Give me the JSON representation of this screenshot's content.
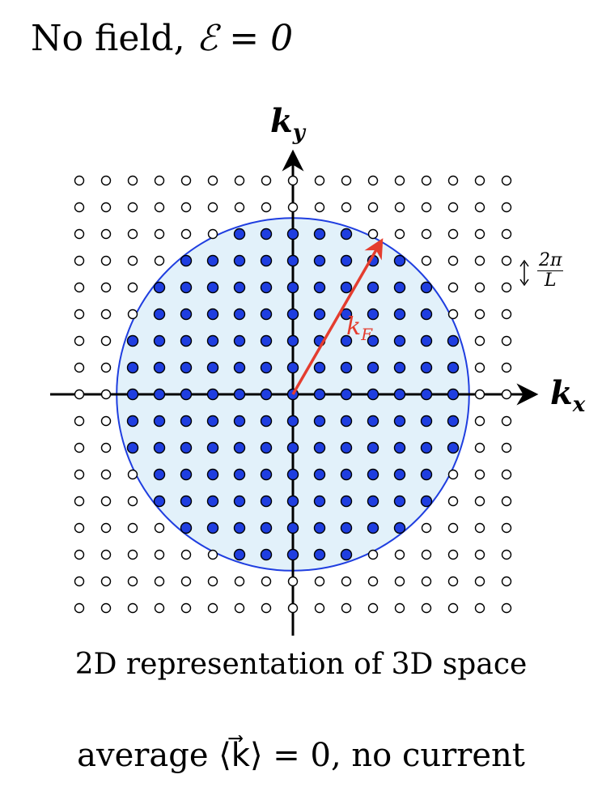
{
  "title": {
    "prefix": "No field,",
    "equation": "ℰ = 0"
  },
  "axes": {
    "x_label_main": "k",
    "x_label_sub": "x",
    "y_label_main": "k",
    "y_label_sub": "y"
  },
  "fermi": {
    "label_main": "k",
    "label_sub": "F",
    "radius_units": 6.6,
    "arrow_angle_deg": 60
  },
  "lattice": {
    "range_min": -8,
    "range_max": 8
  },
  "spacing_label": {
    "numerator": "2π",
    "denominator": "L"
  },
  "captions": {
    "line1": "2D representation of 3D space",
    "line2": "average ⟨k⃗⟩ = 0, no current"
  },
  "colors": {
    "filled": "#1f3ee0",
    "empty": "#ffffff",
    "circle_fill": "#e2f1fa",
    "circle_stroke": "#1f3ee0",
    "arrow": "#e43d2f",
    "axis": "#000000"
  }
}
